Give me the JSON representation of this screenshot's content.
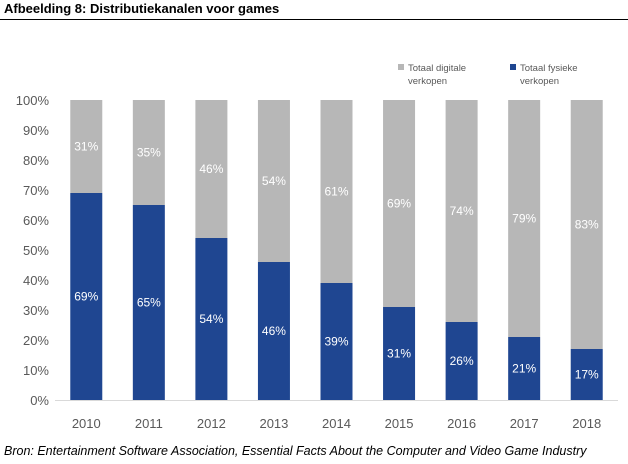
{
  "title": "Afbeelding 8: Distributiekanalen voor games",
  "source": "Bron: Entertainment Software Association, Essential Facts About the Computer and Video Game Industry",
  "colors": {
    "digital": "#b7b7b7",
    "physical": "#1f4691",
    "digital_label": "#ffffff",
    "physical_label": "#ffffff",
    "axis_text": "#595959"
  },
  "chart_data": {
    "type": "bar",
    "stacked": true,
    "categories": [
      "2010",
      "2011",
      "2012",
      "2013",
      "2014",
      "2015",
      "2016",
      "2017",
      "2018"
    ],
    "series": [
      {
        "name": "Totaal fysieke verkopen",
        "values": [
          69,
          65,
          54,
          46,
          39,
          31,
          26,
          21,
          17
        ],
        "labels": [
          "69%",
          "65%",
          "54%",
          "46%",
          "39%",
          "31%",
          "26%",
          "21%",
          "17%"
        ]
      },
      {
        "name": "Totaal digitale verkopen",
        "values": [
          31,
          35,
          46,
          54,
          61,
          69,
          74,
          79,
          83
        ],
        "labels": [
          "31%",
          "35%",
          "46%",
          "54%",
          "61%",
          "69%",
          "74%",
          "79%",
          "83%"
        ]
      }
    ],
    "legend": [
      {
        "line1": "Totaal digitale",
        "line2": "verkopen"
      },
      {
        "line1": "Totaal fysieke",
        "line2": "verkopen"
      }
    ],
    "legend_position": "top-right",
    "yticks": [
      "0%",
      "10%",
      "20%",
      "30%",
      "40%",
      "50%",
      "60%",
      "70%",
      "80%",
      "90%",
      "100%"
    ],
    "ylim": [
      0,
      100
    ],
    "grid": false
  }
}
